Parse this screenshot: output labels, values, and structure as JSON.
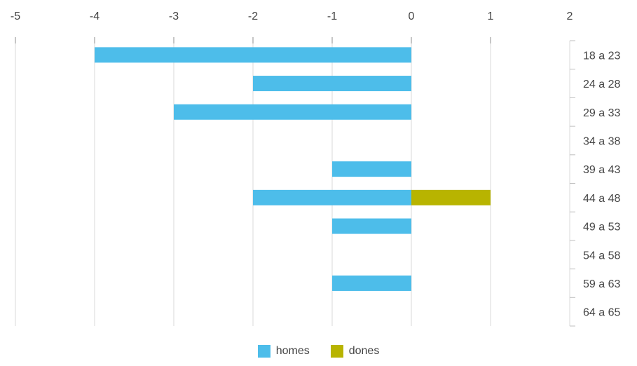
{
  "chart_data": {
    "type": "bar",
    "orientation": "horizontal",
    "categories": [
      "18 a 23",
      "24 a 28",
      "29 a 33",
      "34 a 38",
      "39 a 43",
      "44 a 48",
      "49 a 53",
      "54 a 58",
      "59 a 63",
      "64 a 65"
    ],
    "series": [
      {
        "name": "homes",
        "color": "#4dbdea",
        "values": [
          -4,
          -2,
          -3,
          0,
          -1,
          -2,
          -1,
          0,
          -1,
          0
        ]
      },
      {
        "name": "dones",
        "color": "#b8b400",
        "values": [
          0,
          0,
          0,
          0,
          0,
          1,
          0,
          0,
          0,
          0
        ]
      }
    ],
    "xlim": [
      -5,
      2
    ],
    "xticks": [
      "-5",
      "-4",
      "-3",
      "-2",
      "-1",
      "0",
      "1",
      "2"
    ],
    "category_axis_position": "right",
    "value_axis_position": "top",
    "grid": true,
    "legend_position": "bottom-center"
  }
}
